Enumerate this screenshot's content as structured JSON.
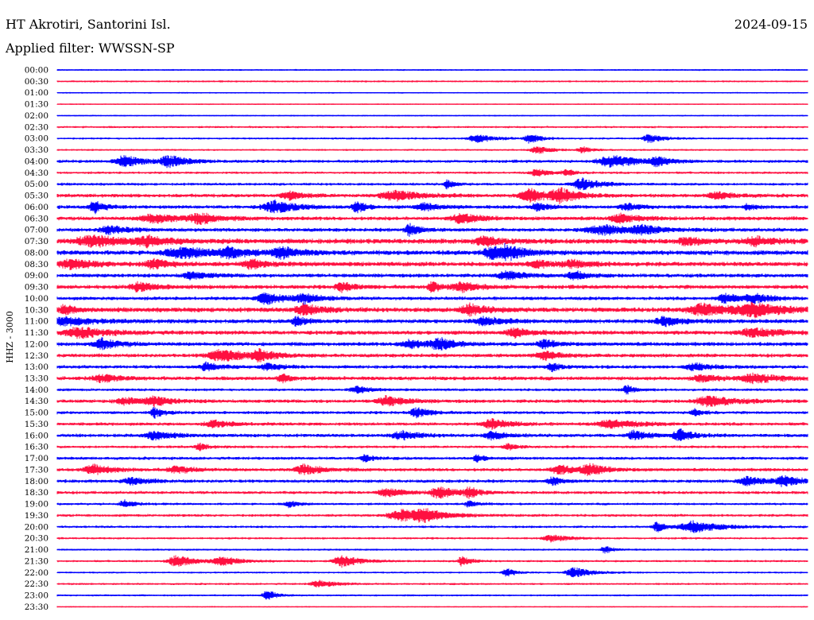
{
  "header": {
    "station": "HT Akrotiri, Santorini Isl.",
    "date": "2024-09-15",
    "filter": "Applied filter: WWSSN-SP"
  },
  "channel_label": "HHZ - 3000",
  "colors": {
    "even_row": "#0000ff",
    "odd_row": "#ff1040",
    "text": "#000000"
  },
  "chart_data": {
    "type": "line",
    "description_kind": "helicorder",
    "row_labels": [
      "00:00",
      "00:30",
      "01:00",
      "01:30",
      "02:00",
      "02:30",
      "03:00",
      "03:30",
      "04:00",
      "04:30",
      "05:00",
      "05:30",
      "06:00",
      "06:30",
      "07:00",
      "07:30",
      "08:00",
      "08:30",
      "09:00",
      "09:30",
      "10:00",
      "10:30",
      "11:00",
      "11:30",
      "12:00",
      "12:30",
      "13:00",
      "13:30",
      "14:00",
      "14:30",
      "15:00",
      "15:30",
      "16:00",
      "16:30",
      "17:00",
      "17:30",
      "18:00",
      "18:30",
      "19:00",
      "19:30",
      "20:00",
      "20:30",
      "21:00",
      "21:30",
      "22:00",
      "22:30",
      "23:00",
      "23:30"
    ],
    "row_colors_alternate": [
      "#0000ff",
      "#ff1040"
    ],
    "row_noise_level": [
      1.2,
      1.4,
      1.1,
      1.0,
      1.1,
      1.6,
      1.5,
      1.4,
      2.2,
      1.8,
      2.0,
      2.6,
      2.6,
      2.8,
      2.7,
      3.6,
      3.4,
      3.2,
      2.8,
      2.9,
      2.6,
      3.4,
      3.0,
      3.0,
      2.8,
      2.7,
      2.5,
      2.8,
      2.0,
      2.6,
      2.2,
      2.4,
      2.5,
      2.0,
      2.2,
      2.4,
      2.4,
      2.2,
      1.8,
      2.0,
      1.8,
      1.6,
      1.5,
      1.6,
      1.4,
      1.5,
      1.4,
      1.0
    ],
    "events": [
      [],
      [],
      [],
      [],
      [],
      [],
      [
        [
          0.56,
          5,
          0.018
        ],
        [
          0.63,
          6,
          0.012
        ],
        [
          0.79,
          5,
          0.015
        ]
      ],
      [
        [
          0.64,
          5,
          0.015
        ],
        [
          0.7,
          4,
          0.01
        ]
      ],
      [
        [
          0.09,
          7,
          0.02
        ],
        [
          0.15,
          7,
          0.02
        ],
        [
          0.74,
          7,
          0.03
        ],
        [
          0.8,
          5,
          0.015
        ]
      ],
      [
        [
          0.64,
          4,
          0.015
        ],
        [
          0.68,
          4,
          0.01
        ]
      ],
      [
        [
          0.52,
          5,
          0.008
        ],
        [
          0.7,
          7,
          0.02
        ]
      ],
      [
        [
          0.31,
          5,
          0.018
        ],
        [
          0.45,
          6,
          0.03
        ],
        [
          0.63,
          8,
          0.02
        ],
        [
          0.67,
          8,
          0.02
        ],
        [
          0.88,
          4,
          0.02
        ]
      ],
      [
        [
          0.05,
          8,
          0.01
        ],
        [
          0.29,
          7,
          0.025
        ],
        [
          0.4,
          7,
          0.01
        ],
        [
          0.49,
          4,
          0.02
        ],
        [
          0.64,
          4,
          0.015
        ],
        [
          0.76,
          4,
          0.015
        ],
        [
          0.92,
          3,
          0.01
        ]
      ],
      [
        [
          0.13,
          5,
          0.03
        ],
        [
          0.19,
          6,
          0.02
        ],
        [
          0.54,
          6,
          0.02
        ],
        [
          0.75,
          5,
          0.02
        ]
      ],
      [
        [
          0.07,
          5,
          0.02
        ],
        [
          0.47,
          8,
          0.01
        ],
        [
          0.73,
          5,
          0.04
        ],
        [
          0.78,
          4,
          0.02
        ]
      ],
      [
        [
          0.05,
          6,
          0.04
        ],
        [
          0.12,
          5,
          0.02
        ],
        [
          0.57,
          5,
          0.02
        ],
        [
          0.84,
          4,
          0.02
        ],
        [
          0.93,
          5,
          0.02
        ]
      ],
      [
        [
          0.17,
          6,
          0.04
        ],
        [
          0.23,
          5,
          0.02
        ],
        [
          0.3,
          6,
          0.02
        ],
        [
          0.58,
          6,
          0.02
        ],
        [
          0.6,
          7,
          0.02
        ]
      ],
      [
        [
          0.02,
          5,
          0.03
        ],
        [
          0.13,
          5,
          0.02
        ],
        [
          0.26,
          5,
          0.02
        ],
        [
          0.64,
          4,
          0.02
        ],
        [
          0.69,
          4,
          0.02
        ]
      ],
      [
        [
          0.18,
          4,
          0.02
        ],
        [
          0.6,
          5,
          0.02
        ],
        [
          0.69,
          5,
          0.015
        ]
      ],
      [
        [
          0.11,
          5,
          0.02
        ],
        [
          0.38,
          5,
          0.015
        ],
        [
          0.5,
          6,
          0.01
        ],
        [
          0.54,
          5,
          0.02
        ]
      ],
      [
        [
          0.28,
          7,
          0.02
        ],
        [
          0.33,
          5,
          0.02
        ],
        [
          0.89,
          6,
          0.015
        ],
        [
          0.93,
          5,
          0.02
        ]
      ],
      [
        [
          0.01,
          6,
          0.01
        ],
        [
          0.33,
          6,
          0.02
        ],
        [
          0.55,
          6,
          0.02
        ],
        [
          0.86,
          7,
          0.03
        ],
        [
          0.93,
          7,
          0.04
        ]
      ],
      [
        [
          0.01,
          5,
          0.03
        ],
        [
          0.32,
          6,
          0.01
        ],
        [
          0.57,
          5,
          0.02
        ],
        [
          0.81,
          5,
          0.02
        ]
      ],
      [
        [
          0.03,
          6,
          0.03
        ],
        [
          0.61,
          5,
          0.02
        ],
        [
          0.93,
          5,
          0.03
        ]
      ],
      [
        [
          0.06,
          6,
          0.02
        ],
        [
          0.47,
          5,
          0.02
        ],
        [
          0.51,
          6,
          0.02
        ],
        [
          0.65,
          5,
          0.015
        ]
      ],
      [
        [
          0.22,
          7,
          0.03
        ],
        [
          0.27,
          6,
          0.015
        ],
        [
          0.65,
          5,
          0.02
        ]
      ],
      [
        [
          0.2,
          5,
          0.015
        ],
        [
          0.28,
          4,
          0.015
        ],
        [
          0.66,
          5,
          0.01
        ],
        [
          0.85,
          4,
          0.02
        ]
      ],
      [
        [
          0.06,
          4,
          0.02
        ],
        [
          0.3,
          5,
          0.01
        ],
        [
          0.86,
          4,
          0.02
        ],
        [
          0.93,
          5,
          0.03
        ]
      ],
      [
        [
          0.4,
          4,
          0.015
        ],
        [
          0.76,
          5,
          0.01
        ]
      ],
      [
        [
          0.09,
          4,
          0.02
        ],
        [
          0.13,
          5,
          0.02
        ],
        [
          0.44,
          6,
          0.02
        ],
        [
          0.87,
          6,
          0.03
        ]
      ],
      [
        [
          0.13,
          6,
          0.01
        ],
        [
          0.48,
          6,
          0.015
        ],
        [
          0.85,
          4,
          0.01
        ]
      ],
      [
        [
          0.21,
          4,
          0.02
        ],
        [
          0.58,
          6,
          0.02
        ],
        [
          0.74,
          5,
          0.03
        ]
      ],
      [
        [
          0.13,
          5,
          0.02
        ],
        [
          0.46,
          5,
          0.02
        ],
        [
          0.58,
          5,
          0.015
        ],
        [
          0.77,
          6,
          0.015
        ],
        [
          0.83,
          7,
          0.015
        ]
      ],
      [
        [
          0.19,
          4,
          0.01
        ],
        [
          0.6,
          4,
          0.01
        ]
      ],
      [
        [
          0.41,
          4,
          0.01
        ],
        [
          0.56,
          4,
          0.01
        ]
      ],
      [
        [
          0.05,
          6,
          0.02
        ],
        [
          0.16,
          4,
          0.02
        ],
        [
          0.33,
          6,
          0.02
        ],
        [
          0.67,
          5,
          0.02
        ],
        [
          0.71,
          6,
          0.02
        ]
      ],
      [
        [
          0.1,
          4,
          0.02
        ],
        [
          0.66,
          5,
          0.01
        ],
        [
          0.92,
          5,
          0.02
        ],
        [
          0.97,
          6,
          0.02
        ]
      ],
      [
        [
          0.44,
          5,
          0.02
        ],
        [
          0.51,
          7,
          0.02
        ],
        [
          0.55,
          6,
          0.01
        ]
      ],
      [
        [
          0.09,
          5,
          0.01
        ],
        [
          0.31,
          4,
          0.01
        ],
        [
          0.55,
          4,
          0.01
        ]
      ],
      [
        [
          0.46,
          7,
          0.03
        ],
        [
          0.49,
          6,
          0.02
        ]
      ],
      [
        [
          0.8,
          6,
          0.01
        ],
        [
          0.85,
          7,
          0.03
        ]
      ],
      [
        [
          0.66,
          4,
          0.02
        ]
      ],
      [
        [
          0.73,
          4,
          0.01
        ]
      ],
      [
        [
          0.16,
          7,
          0.02
        ],
        [
          0.22,
          5,
          0.02
        ],
        [
          0.38,
          7,
          0.02
        ],
        [
          0.54,
          6,
          0.01
        ]
      ],
      [
        [
          0.6,
          5,
          0.01
        ],
        [
          0.69,
          6,
          0.02
        ]
      ],
      [
        [
          0.35,
          4,
          0.02
        ]
      ],
      [
        [
          0.28,
          7,
          0.01
        ]
      ],
      []
    ]
  }
}
